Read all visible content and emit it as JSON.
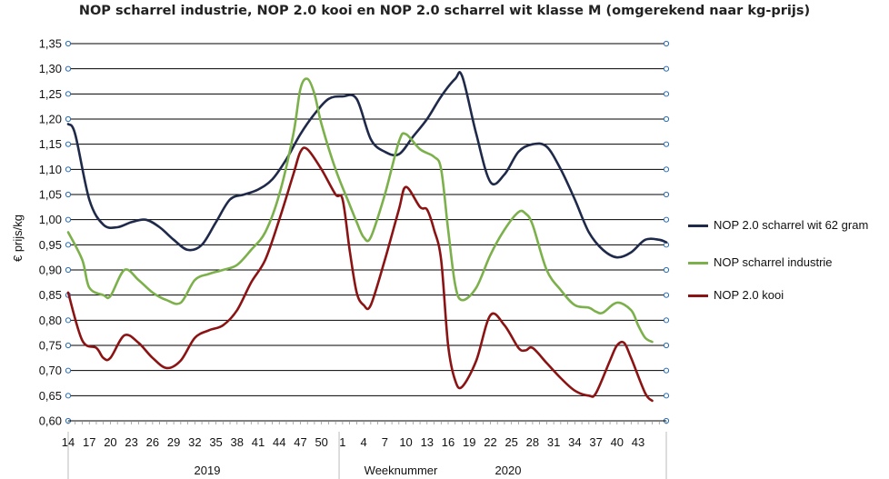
{
  "chart_data": {
    "type": "line",
    "title": "NOP scharrel industrie, NOP 2.0 kooi en NOP 2.0 scharrel wit klasse M (omgerekend naar kg-prijs)",
    "ylabel": "€ prijs/kg",
    "xlabel": "Weeknummer",
    "ylim": [
      0.6,
      1.35
    ],
    "y_ticks": [
      "0,60",
      "0,65",
      "0,70",
      "0,75",
      "0,80",
      "0,85",
      "0,90",
      "0,95",
      "1,00",
      "1,05",
      "1,10",
      "1,15",
      "1,20",
      "1,25",
      "1,30",
      "1,35"
    ],
    "x_tick_labels": [
      "14",
      "17",
      "20",
      "23",
      "26",
      "29",
      "32",
      "35",
      "38",
      "41",
      "44",
      "47",
      "50",
      "1",
      "4",
      "7",
      "10",
      "13",
      "16",
      "19",
      "22",
      "25",
      "28",
      "31",
      "34",
      "37",
      "40",
      "43"
    ],
    "year_labels": [
      "2019",
      "2020"
    ],
    "grid": true,
    "legend_position": "right",
    "series": [
      {
        "name": "NOP 2.0 scharrel wit 62 gram",
        "color": "#1f2a4a",
        "points": [
          [
            0,
            1.19
          ],
          [
            1,
            1.17
          ],
          [
            3,
            1.04
          ],
          [
            5,
            0.99
          ],
          [
            7,
            0.985
          ],
          [
            9,
            0.995
          ],
          [
            11,
            1.0
          ],
          [
            13,
            0.985
          ],
          [
            15,
            0.96
          ],
          [
            17,
            0.94
          ],
          [
            19,
            0.95
          ],
          [
            21,
            0.995
          ],
          [
            23,
            1.04
          ],
          [
            25,
            1.05
          ],
          [
            27,
            1.06
          ],
          [
            29,
            1.08
          ],
          [
            31,
            1.12
          ],
          [
            33,
            1.17
          ],
          [
            35,
            1.21
          ],
          [
            37,
            1.24
          ],
          [
            39,
            1.245
          ],
          [
            41,
            1.24
          ],
          [
            43,
            1.16
          ],
          [
            45,
            1.135
          ],
          [
            47,
            1.13
          ],
          [
            49,
            1.165
          ],
          [
            51,
            1.2
          ],
          [
            53,
            1.245
          ],
          [
            55,
            1.28
          ],
          [
            56,
            1.285
          ],
          [
            58,
            1.17
          ],
          [
            60,
            1.075
          ],
          [
            62,
            1.09
          ],
          [
            64,
            1.135
          ],
          [
            66,
            1.15
          ],
          [
            68,
            1.145
          ],
          [
            70,
            1.1
          ],
          [
            72,
            1.04
          ],
          [
            74,
            0.975
          ],
          [
            76,
            0.94
          ],
          [
            78,
            0.925
          ],
          [
            80,
            0.935
          ],
          [
            82,
            0.96
          ],
          [
            84,
            0.96
          ],
          [
            85,
            0.955
          ]
        ]
      },
      {
        "name": "NOP scharrel industrie",
        "color": "#7bb04a",
        "points": [
          [
            0,
            0.975
          ],
          [
            2,
            0.92
          ],
          [
            3,
            0.865
          ],
          [
            5,
            0.85
          ],
          [
            6,
            0.848
          ],
          [
            8,
            0.9
          ],
          [
            10,
            0.88
          ],
          [
            12,
            0.855
          ],
          [
            14,
            0.84
          ],
          [
            16,
            0.835
          ],
          [
            18,
            0.88
          ],
          [
            20,
            0.892
          ],
          [
            22,
            0.9
          ],
          [
            24,
            0.91
          ],
          [
            26,
            0.94
          ],
          [
            28,
            0.975
          ],
          [
            30,
            1.05
          ],
          [
            32,
            1.17
          ],
          [
            33,
            1.26
          ],
          [
            34,
            1.28
          ],
          [
            35,
            1.25
          ],
          [
            36,
            1.19
          ],
          [
            38,
            1.1
          ],
          [
            40,
            1.03
          ],
          [
            41,
            0.995
          ],
          [
            42,
            0.965
          ],
          [
            43,
            0.965
          ],
          [
            45,
            1.05
          ],
          [
            47,
            1.155
          ],
          [
            48,
            1.17
          ],
          [
            50,
            1.14
          ],
          [
            52,
            1.125
          ],
          [
            53,
            1.1
          ],
          [
            54,
            0.98
          ],
          [
            55,
            0.87
          ],
          [
            56,
            0.84
          ],
          [
            58,
            0.865
          ],
          [
            60,
            0.93
          ],
          [
            62,
            0.98
          ],
          [
            64,
            1.015
          ],
          [
            65,
            1.012
          ],
          [
            66,
            0.99
          ],
          [
            68,
            0.9
          ],
          [
            70,
            0.86
          ],
          [
            72,
            0.83
          ],
          [
            74,
            0.825
          ],
          [
            75,
            0.817
          ],
          [
            76,
            0.815
          ],
          [
            78,
            0.835
          ],
          [
            80,
            0.82
          ],
          [
            81,
            0.79
          ],
          [
            82,
            0.765
          ],
          [
            83,
            0.757
          ]
        ]
      },
      {
        "name": "NOP 2.0 kooi",
        "color": "#8b1313",
        "points": [
          [
            0,
            0.855
          ],
          [
            2,
            0.76
          ],
          [
            4,
            0.745
          ],
          [
            5,
            0.725
          ],
          [
            6,
            0.725
          ],
          [
            8,
            0.77
          ],
          [
            10,
            0.755
          ],
          [
            12,
            0.725
          ],
          [
            14,
            0.705
          ],
          [
            16,
            0.72
          ],
          [
            18,
            0.765
          ],
          [
            20,
            0.78
          ],
          [
            22,
            0.79
          ],
          [
            24,
            0.82
          ],
          [
            26,
            0.875
          ],
          [
            28,
            0.92
          ],
          [
            30,
            1.0
          ],
          [
            32,
            1.09
          ],
          [
            33,
            1.135
          ],
          [
            34,
            1.14
          ],
          [
            36,
            1.1
          ],
          [
            38,
            1.05
          ],
          [
            39,
            1.04
          ],
          [
            40,
            0.94
          ],
          [
            41,
            0.855
          ],
          [
            42,
            0.83
          ],
          [
            43,
            0.83
          ],
          [
            45,
            0.92
          ],
          [
            47,
            1.02
          ],
          [
            48,
            1.065
          ],
          [
            50,
            1.025
          ],
          [
            51,
            1.02
          ],
          [
            52,
            0.98
          ],
          [
            53,
            0.92
          ],
          [
            54,
            0.75
          ],
          [
            55,
            0.68
          ],
          [
            56,
            0.668
          ],
          [
            58,
            0.72
          ],
          [
            60,
            0.81
          ],
          [
            62,
            0.79
          ],
          [
            64,
            0.745
          ],
          [
            65,
            0.74
          ],
          [
            66,
            0.745
          ],
          [
            68,
            0.715
          ],
          [
            70,
            0.685
          ],
          [
            72,
            0.66
          ],
          [
            74,
            0.65
          ],
          [
            75,
            0.655
          ],
          [
            77,
            0.72
          ],
          [
            78,
            0.75
          ],
          [
            79,
            0.755
          ],
          [
            80,
            0.725
          ],
          [
            82,
            0.655
          ],
          [
            83,
            0.64
          ]
        ]
      }
    ]
  }
}
